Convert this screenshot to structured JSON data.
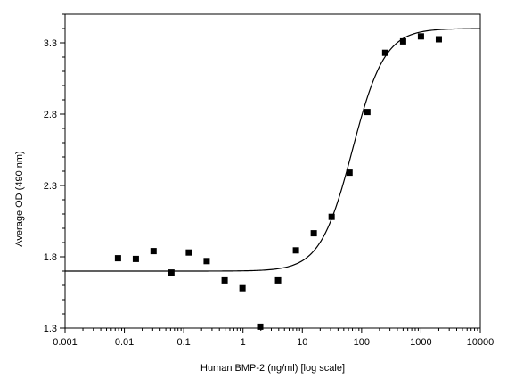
{
  "chart_data": {
    "type": "scatter",
    "title": "",
    "xlabel": "Human BMP-2 (ng/ml) [log scale]",
    "ylabel": "Average OD (490 nm)",
    "xscale": "log",
    "xlim": [
      0.001,
      10000
    ],
    "ylim": [
      1.3,
      3.5
    ],
    "grid": false,
    "legend": "none",
    "x_ticks": [
      {
        "value": 0.001,
        "label": "0.001"
      },
      {
        "value": 0.01,
        "label": "0.01"
      },
      {
        "value": 0.1,
        "label": "0.1"
      },
      {
        "value": 1,
        "label": "1"
      },
      {
        "value": 10,
        "label": "10"
      },
      {
        "value": 100,
        "label": "100"
      },
      {
        "value": 1000,
        "label": "1000"
      },
      {
        "value": 10000,
        "label": "10000"
      }
    ],
    "y_ticks": [
      {
        "value": 1.3,
        "label": "1.3"
      },
      {
        "value": 1.8,
        "label": "1.8"
      },
      {
        "value": 2.3,
        "label": "2.3"
      },
      {
        "value": 2.8,
        "label": "2.8"
      },
      {
        "value": 3.3,
        "label": "3.3"
      }
    ],
    "series": [
      {
        "marker": "square",
        "color": "#000000",
        "points": [
          {
            "x": 0.0078,
            "y": 1.79
          },
          {
            "x": 0.0156,
            "y": 1.785
          },
          {
            "x": 0.031,
            "y": 1.84
          },
          {
            "x": 0.062,
            "y": 1.69
          },
          {
            "x": 0.122,
            "y": 1.83
          },
          {
            "x": 0.244,
            "y": 1.77
          },
          {
            "x": 0.49,
            "y": 1.635
          },
          {
            "x": 0.98,
            "y": 1.58
          },
          {
            "x": 1.95,
            "y": 1.31
          },
          {
            "x": 3.9,
            "y": 1.635
          },
          {
            "x": 7.8,
            "y": 1.845
          },
          {
            "x": 15.6,
            "y": 1.965
          },
          {
            "x": 31.2,
            "y": 2.08
          },
          {
            "x": 62.5,
            "y": 2.39
          },
          {
            "x": 125,
            "y": 2.815
          },
          {
            "x": 250,
            "y": 3.23
          },
          {
            "x": 500,
            "y": 3.31
          },
          {
            "x": 1000,
            "y": 3.345
          },
          {
            "x": 2000,
            "y": 3.325
          }
        ]
      }
    ],
    "fit_curve": {
      "type": "4PL",
      "bottom": 1.7,
      "top": 3.4,
      "ec50": 70,
      "hill": 1.6,
      "color": "#000000"
    }
  }
}
